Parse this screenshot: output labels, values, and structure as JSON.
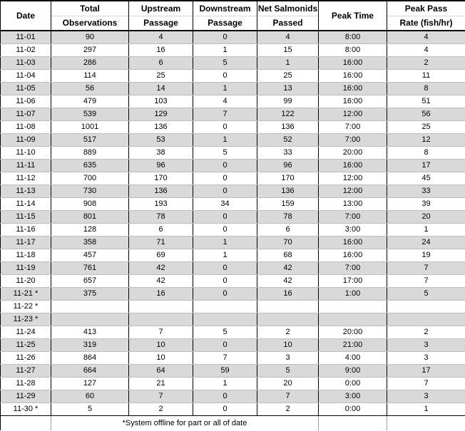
{
  "table": {
    "columns": [
      {
        "line1": "Date",
        "line2": ""
      },
      {
        "line1": "Total",
        "line2": "Observations"
      },
      {
        "line1": "Upstream",
        "line2": "Passage"
      },
      {
        "line1": "Downstream",
        "line2": "Passage"
      },
      {
        "line1": "Net Salmonids",
        "line2": "Passed"
      },
      {
        "line1": "Peak Time",
        "line2": ""
      },
      {
        "line1": "Peak Pass",
        "line2": "Rate (fish/hr)"
      }
    ],
    "rows": [
      [
        "11-01",
        "90",
        "4",
        "0",
        "4",
        "8:00",
        "4"
      ],
      [
        "11-02",
        "297",
        "16",
        "1",
        "15",
        "8:00",
        "4"
      ],
      [
        "11-03",
        "286",
        "6",
        "5",
        "1",
        "16:00",
        "2"
      ],
      [
        "11-04",
        "114",
        "25",
        "0",
        "25",
        "16:00",
        "11"
      ],
      [
        "11-05",
        "56",
        "14",
        "1",
        "13",
        "16:00",
        "8"
      ],
      [
        "11-06",
        "479",
        "103",
        "4",
        "99",
        "16:00",
        "51"
      ],
      [
        "11-07",
        "539",
        "129",
        "7",
        "122",
        "12:00",
        "56"
      ],
      [
        "11-08",
        "1001",
        "136",
        "0",
        "136",
        "7:00",
        "25"
      ],
      [
        "11-09",
        "517",
        "53",
        "1",
        "52",
        "7:00",
        "12"
      ],
      [
        "11-10",
        "889",
        "38",
        "5",
        "33",
        "20:00",
        "8"
      ],
      [
        "11-11",
        "635",
        "96",
        "0",
        "96",
        "16:00",
        "17"
      ],
      [
        "11-12",
        "700",
        "170",
        "0",
        "170",
        "12:00",
        "45"
      ],
      [
        "11-13",
        "730",
        "136",
        "0",
        "136",
        "12:00",
        "33"
      ],
      [
        "11-14",
        "908",
        "193",
        "34",
        "159",
        "13:00",
        "39"
      ],
      [
        "11-15",
        "801",
        "78",
        "0",
        "78",
        "7:00",
        "20"
      ],
      [
        "11-16",
        "128",
        "6",
        "0",
        "6",
        "3:00",
        "1"
      ],
      [
        "11-17",
        "358",
        "71",
        "1",
        "70",
        "16:00",
        "24"
      ],
      [
        "11-18",
        "457",
        "69",
        "1",
        "68",
        "16:00",
        "19"
      ],
      [
        "11-19",
        "761",
        "42",
        "0",
        "42",
        "7:00",
        "7"
      ],
      [
        "11-20",
        "657",
        "42",
        "0",
        "42",
        "17:00",
        "7"
      ],
      [
        "11-21 *",
        "375",
        "16",
        "0",
        "16",
        "1:00",
        "5"
      ],
      [
        "11-22 *",
        "",
        "",
        "",
        "",
        "",
        ""
      ],
      [
        "11-23 *",
        "",
        "",
        "",
        "",
        "",
        ""
      ],
      [
        "11-24",
        "413",
        "7",
        "5",
        "2",
        "20:00",
        "2"
      ],
      [
        "11-25",
        "319",
        "10",
        "0",
        "10",
        "21:00",
        "3"
      ],
      [
        "11-26",
        "864",
        "10",
        "7",
        "3",
        "4:00",
        "3"
      ],
      [
        "11-27",
        "664",
        "64",
        "59",
        "5",
        "9:00",
        "17"
      ],
      [
        "11-28",
        "127",
        "21",
        "1",
        "20",
        "0:00",
        "7"
      ],
      [
        "11-29",
        "60",
        "7",
        "0",
        "7",
        "3:00",
        "3"
      ],
      [
        "11-30 *",
        "5",
        "2",
        "0",
        "2",
        "0:00",
        "1"
      ]
    ],
    "footnote": "*System offline for part or all of date"
  },
  "colors": {
    "band_fill": "#d9d9d9",
    "grid_dark": "#000000",
    "grid_light": "#bfbfbf",
    "text": "#000000"
  }
}
